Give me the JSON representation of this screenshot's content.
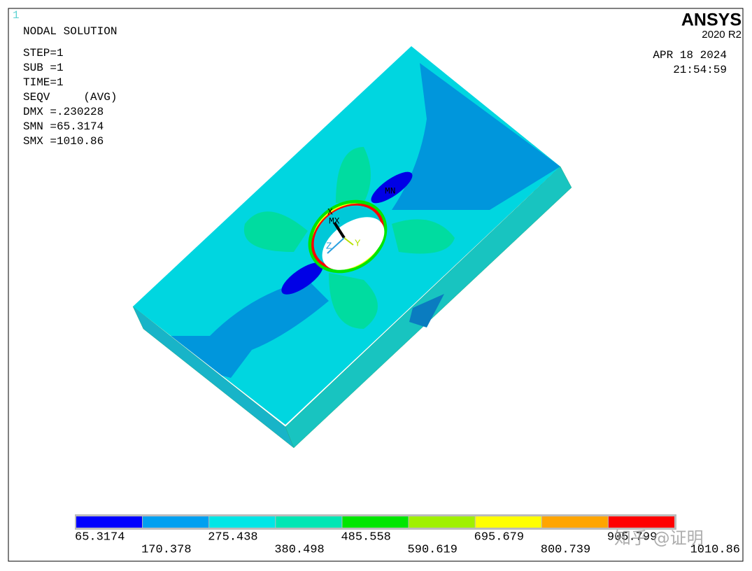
{
  "window_number": "1",
  "header": {
    "title": "NODAL SOLUTION",
    "lines": [
      "STEP=1",
      "SUB =1",
      "TIME=1",
      "SEQV     (AVG)",
      "DMX =.230228",
      "SMN =65.3174",
      "SMX =1010.86"
    ]
  },
  "brand": {
    "name": "ANSYS",
    "version": "2020 R2"
  },
  "timestamp": {
    "date": "APR 18 2024",
    "time": "21:54:59"
  },
  "model_labels": {
    "min": "MN",
    "max": "MX",
    "x_axis": "X",
    "y_axis": "Y",
    "z_axis": "Z"
  },
  "legend": {
    "colors": [
      "#0000ff",
      "#00a0f0",
      "#00e6e6",
      "#00e6b4",
      "#00e600",
      "#a0f000",
      "#ffff00",
      "#ffa500",
      "#ff0000"
    ],
    "labels": [
      "65.3174",
      "170.378",
      "275.438",
      "380.498",
      "485.558",
      "590.619",
      "695.679",
      "800.739",
      "905.799",
      "1010.86"
    ]
  },
  "watermark": "知乎 @证明"
}
